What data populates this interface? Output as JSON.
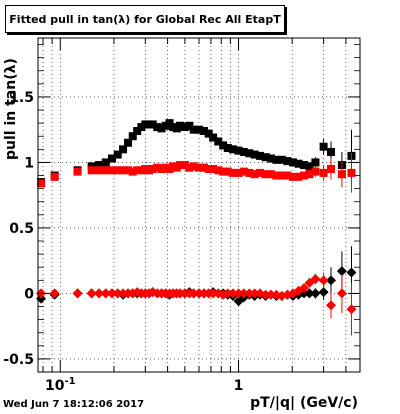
{
  "title": "Fitted pull in tan(λ) for Global Rec All EtapT",
  "timestamp": "Wed Jun  7 18:12:06 2017",
  "chart_data": {
    "type": "scatter",
    "title": "Fitted pull in tan(λ) for Global Rec All EtapT",
    "xlabel": "pT/|q| (GeV/c)",
    "ylabel": "pull in tan(λ)",
    "xscale": "log",
    "xlim": [
      0.075,
      4.8
    ],
    "ylim": [
      -0.6,
      1.95
    ],
    "x_ticks": [
      {
        "v": 0.1,
        "label": "10^-1"
      },
      {
        "v": 1,
        "label": "1"
      }
    ],
    "y_ticks": [
      {
        "v": -0.5,
        "label": "-0.5"
      },
      {
        "v": 0,
        "label": "0"
      },
      {
        "v": 0.5,
        "label": "0.5"
      },
      {
        "v": 1,
        "label": "1"
      },
      {
        "v": 1.5,
        "label": "1.5"
      }
    ],
    "grid": true,
    "colors": {
      "sigma_black": "#000000",
      "sigma_red": "#ff0000"
    },
    "series": [
      {
        "marker": "square",
        "color": "#000000",
        "x": [
          0.078,
          0.093,
          0.125,
          0.15,
          0.165,
          0.18,
          0.195,
          0.21,
          0.225,
          0.24,
          0.255,
          0.27,
          0.285,
          0.3,
          0.315,
          0.33,
          0.35,
          0.37,
          0.39,
          0.41,
          0.43,
          0.45,
          0.47,
          0.5,
          0.53,
          0.56,
          0.6,
          0.64,
          0.68,
          0.72,
          0.77,
          0.82,
          0.87,
          0.93,
          1.0,
          1.07,
          1.15,
          1.23,
          1.32,
          1.42,
          1.52,
          1.63,
          1.75,
          1.88,
          2.02,
          2.17,
          2.33,
          2.5,
          2.7,
          3.0,
          3.3,
          3.8,
          4.3
        ],
        "y": [
          0.85,
          0.9,
          0.94,
          0.97,
          0.98,
          1.0,
          1.03,
          1.06,
          1.1,
          1.15,
          1.2,
          1.24,
          1.27,
          1.29,
          1.29,
          1.29,
          1.27,
          1.26,
          1.28,
          1.3,
          1.27,
          1.26,
          1.28,
          1.27,
          1.28,
          1.25,
          1.25,
          1.24,
          1.22,
          1.19,
          1.16,
          1.13,
          1.11,
          1.1,
          1.09,
          1.08,
          1.07,
          1.06,
          1.05,
          1.04,
          1.03,
          1.02,
          1.02,
          1.01,
          1.0,
          0.99,
          0.98,
          0.97,
          1.0,
          1.12,
          1.08,
          0.98,
          1.05
        ],
        "yerr": [
          0.02,
          0.02,
          0.01,
          0.01,
          0.01,
          0.01,
          0.01,
          0.01,
          0.01,
          0.01,
          0.01,
          0.01,
          0.01,
          0.01,
          0.01,
          0.01,
          0.01,
          0.01,
          0.01,
          0.01,
          0.01,
          0.01,
          0.01,
          0.01,
          0.01,
          0.01,
          0.01,
          0.01,
          0.01,
          0.01,
          0.01,
          0.01,
          0.01,
          0.01,
          0.01,
          0.01,
          0.01,
          0.01,
          0.01,
          0.01,
          0.02,
          0.02,
          0.02,
          0.02,
          0.02,
          0.02,
          0.03,
          0.03,
          0.04,
          0.06,
          0.08,
          0.1,
          0.2
        ]
      },
      {
        "marker": "square",
        "color": "#ff0000",
        "x": [
          0.078,
          0.093,
          0.125,
          0.15,
          0.165,
          0.18,
          0.195,
          0.21,
          0.225,
          0.24,
          0.255,
          0.27,
          0.285,
          0.3,
          0.315,
          0.33,
          0.35,
          0.37,
          0.39,
          0.41,
          0.43,
          0.45,
          0.47,
          0.5,
          0.53,
          0.56,
          0.6,
          0.64,
          0.68,
          0.72,
          0.77,
          0.82,
          0.87,
          0.93,
          1.0,
          1.07,
          1.15,
          1.23,
          1.32,
          1.42,
          1.52,
          1.63,
          1.75,
          1.88,
          2.02,
          2.17,
          2.33,
          2.5,
          2.7,
          3.0,
          3.3,
          3.8,
          4.3
        ],
        "y": [
          0.84,
          0.89,
          0.93,
          0.94,
          0.94,
          0.94,
          0.94,
          0.94,
          0.94,
          0.94,
          0.93,
          0.94,
          0.94,
          0.95,
          0.94,
          0.95,
          0.96,
          0.95,
          0.96,
          0.95,
          0.97,
          0.96,
          0.98,
          0.98,
          0.96,
          0.97,
          0.96,
          0.96,
          0.95,
          0.95,
          0.94,
          0.93,
          0.93,
          0.92,
          0.92,
          0.93,
          0.92,
          0.91,
          0.92,
          0.91,
          0.91,
          0.9,
          0.9,
          0.9,
          0.89,
          0.89,
          0.9,
          0.91,
          0.93,
          0.92,
          0.95,
          0.91,
          0.92
        ],
        "yerr": [
          0.02,
          0.02,
          0.01,
          0.01,
          0.01,
          0.01,
          0.01,
          0.01,
          0.01,
          0.01,
          0.01,
          0.01,
          0.01,
          0.01,
          0.01,
          0.01,
          0.01,
          0.01,
          0.01,
          0.01,
          0.01,
          0.01,
          0.01,
          0.01,
          0.01,
          0.01,
          0.01,
          0.01,
          0.01,
          0.01,
          0.01,
          0.01,
          0.01,
          0.01,
          0.01,
          0.01,
          0.01,
          0.01,
          0.01,
          0.01,
          0.02,
          0.02,
          0.02,
          0.02,
          0.02,
          0.02,
          0.03,
          0.03,
          0.04,
          0.06,
          0.08,
          0.1,
          0.15
        ]
      },
      {
        "marker": "diamond",
        "color": "#000000",
        "x": [
          0.078,
          0.093,
          0.125,
          0.15,
          0.165,
          0.18,
          0.195,
          0.21,
          0.225,
          0.24,
          0.255,
          0.27,
          0.285,
          0.3,
          0.315,
          0.33,
          0.35,
          0.37,
          0.39,
          0.41,
          0.43,
          0.45,
          0.47,
          0.5,
          0.53,
          0.56,
          0.6,
          0.64,
          0.68,
          0.72,
          0.77,
          0.82,
          0.87,
          0.93,
          1.0,
          1.07,
          1.15,
          1.23,
          1.32,
          1.42,
          1.52,
          1.63,
          1.75,
          1.88,
          2.02,
          2.17,
          2.33,
          2.5,
          2.7,
          3.0,
          3.3,
          3.8,
          4.3
        ],
        "y": [
          -0.04,
          -0.01,
          0.0,
          0.0,
          0.0,
          0.0,
          0.0,
          0.0,
          -0.01,
          0.0,
          0.0,
          0.0,
          0.0,
          0.0,
          0.0,
          0.01,
          0.0,
          0.0,
          0.0,
          -0.01,
          0.0,
          0.0,
          0.0,
          0.0,
          0.01,
          0.0,
          0.0,
          0.0,
          0.0,
          0.01,
          0.0,
          0.0,
          -0.01,
          -0.02,
          -0.06,
          -0.03,
          -0.01,
          -0.02,
          -0.01,
          -0.02,
          -0.01,
          -0.02,
          -0.02,
          -0.01,
          -0.02,
          -0.01,
          0.0,
          0.0,
          0.0,
          0.01,
          0.1,
          0.17,
          0.16
        ],
        "yerr": [
          0.02,
          0.02,
          0.01,
          0.01,
          0.01,
          0.01,
          0.01,
          0.01,
          0.01,
          0.01,
          0.01,
          0.01,
          0.01,
          0.01,
          0.01,
          0.01,
          0.01,
          0.01,
          0.01,
          0.01,
          0.01,
          0.01,
          0.01,
          0.01,
          0.01,
          0.01,
          0.01,
          0.01,
          0.01,
          0.01,
          0.01,
          0.01,
          0.01,
          0.01,
          0.02,
          0.02,
          0.02,
          0.02,
          0.02,
          0.02,
          0.02,
          0.02,
          0.02,
          0.02,
          0.02,
          0.02,
          0.03,
          0.03,
          0.04,
          0.06,
          0.1,
          0.15,
          0.2
        ]
      },
      {
        "marker": "diamond",
        "color": "#ff0000",
        "x": [
          0.078,
          0.093,
          0.125,
          0.15,
          0.165,
          0.18,
          0.195,
          0.21,
          0.225,
          0.24,
          0.255,
          0.27,
          0.285,
          0.3,
          0.315,
          0.33,
          0.35,
          0.37,
          0.39,
          0.41,
          0.43,
          0.45,
          0.47,
          0.5,
          0.53,
          0.56,
          0.6,
          0.64,
          0.68,
          0.72,
          0.77,
          0.82,
          0.87,
          0.93,
          1.0,
          1.07,
          1.15,
          1.23,
          1.32,
          1.42,
          1.52,
          1.63,
          1.75,
          1.88,
          2.02,
          2.17,
          2.33,
          2.5,
          2.7,
          3.0,
          3.3,
          3.8,
          4.3
        ],
        "y": [
          0.0,
          0.0,
          0.0,
          0.0,
          0.0,
          0.0,
          0.0,
          0.0,
          0.0,
          0.0,
          0.0,
          0.01,
          0.0,
          0.0,
          0.0,
          0.01,
          0.0,
          0.0,
          0.0,
          0.0,
          0.0,
          0.0,
          0.0,
          0.0,
          0.0,
          0.0,
          0.0,
          0.0,
          0.0,
          0.0,
          0.0,
          -0.01,
          0.0,
          0.0,
          0.0,
          0.0,
          0.0,
          0.0,
          0.0,
          -0.01,
          -0.01,
          -0.01,
          -0.02,
          -0.01,
          0.0,
          0.02,
          0.04,
          0.08,
          0.11,
          0.1,
          -0.09,
          0.0,
          -0.12
        ],
        "yerr": [
          0.02,
          0.02,
          0.01,
          0.01,
          0.01,
          0.01,
          0.01,
          0.01,
          0.01,
          0.01,
          0.01,
          0.01,
          0.01,
          0.01,
          0.01,
          0.01,
          0.01,
          0.01,
          0.01,
          0.01,
          0.01,
          0.01,
          0.01,
          0.01,
          0.01,
          0.01,
          0.01,
          0.01,
          0.01,
          0.01,
          0.01,
          0.01,
          0.01,
          0.01,
          0.01,
          0.01,
          0.01,
          0.01,
          0.01,
          0.01,
          0.02,
          0.02,
          0.02,
          0.02,
          0.02,
          0.02,
          0.03,
          0.03,
          0.04,
          0.06,
          0.1,
          0.15,
          0.2
        ]
      }
    ]
  }
}
